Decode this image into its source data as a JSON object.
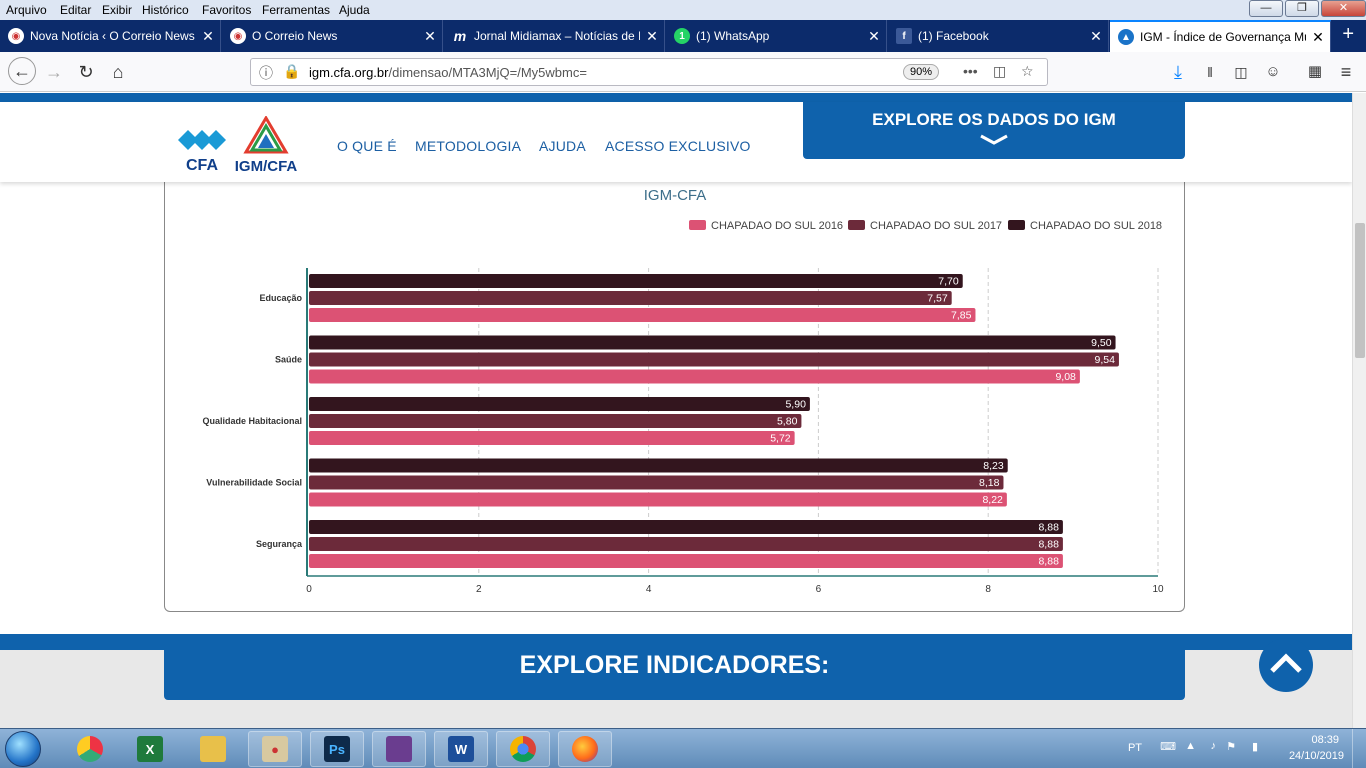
{
  "menubar": {
    "items": [
      "Arquivo",
      "Editar",
      "Exibir",
      "Histórico",
      "Favoritos",
      "Ferramentas",
      "Ajuda"
    ]
  },
  "tabs": [
    {
      "label": "Nova Notícia ‹ O Correio News",
      "icon": "correio-news-icon",
      "active": false
    },
    {
      "label": "O Correio News",
      "icon": "correio-news-icon",
      "active": false
    },
    {
      "label": "Jornal Midiamax – Notícias de MS",
      "icon": "midiamax-icon",
      "active": false
    },
    {
      "label": "(1) WhatsApp",
      "icon": "whatsapp-icon",
      "active": false
    },
    {
      "label": "(1) Facebook",
      "icon": "facebook-icon",
      "active": false
    },
    {
      "label": "IGM - Índice de Governança Municipal",
      "icon": "igm-icon",
      "active": true
    }
  ],
  "navbar": {
    "url_host": "igm.cfa.org.br",
    "url_path": "/dimensao/MTA3MjQ=/My5wbmc=",
    "zoom": "90%",
    "dots": "•••"
  },
  "site": {
    "logo_cfa": "CFA",
    "logo_igm": "IGM/CFA",
    "nav": [
      "O QUE É",
      "METODOLOGIA",
      "AJUDA",
      "ACESSO EXCLUSIVO"
    ],
    "explore_button": "EXPLORE OS DADOS DO IGM",
    "indicators_title": "EXPLORE INDICADORES:"
  },
  "chart_data": {
    "type": "bar",
    "orientation": "horizontal",
    "title": "IGM-CFA",
    "categories": [
      "Educação",
      "Saúde",
      "Qualidade Habitacional",
      "Vulnerabilidade Social",
      "Segurança"
    ],
    "series": [
      {
        "name": "CHAPADAO DO SUL 2016",
        "color": "#dc5274",
        "values": [
          7.85,
          9.08,
          5.72,
          8.22,
          8.88
        ],
        "labels": [
          "7,85",
          "9,08",
          "5,72",
          "8,22",
          "8,88"
        ]
      },
      {
        "name": "CHAPADAO DO SUL 2017",
        "color": "#6c2a3a",
        "values": [
          7.57,
          9.54,
          5.8,
          8.18,
          8.88
        ],
        "labels": [
          "7,57",
          "9,54",
          "5,80",
          "8,18",
          "8,88"
        ]
      },
      {
        "name": "CHAPADAO DO SUL 2018",
        "color": "#33151e",
        "values": [
          7.7,
          9.5,
          5.9,
          8.23,
          8.88
        ],
        "labels": [
          "7,70",
          "9,50",
          "5,90",
          "8,23",
          "8,88"
        ]
      }
    ],
    "xlim": [
      0,
      10
    ],
    "xticks": [
      "0",
      "2",
      "4",
      "6",
      "8",
      "10"
    ],
    "legend": "top-right",
    "grid": true
  },
  "taskbar": {
    "apps": [
      "chrome-remote-icon",
      "excel-icon",
      "file-explorer-icon",
      "paint-icon",
      "photoshop-icon",
      "movie-maker-icon",
      "word-icon",
      "chrome-icon",
      "firefox-icon"
    ],
    "lang": "PT",
    "time": "08:39",
    "date": "24/10/2019"
  }
}
